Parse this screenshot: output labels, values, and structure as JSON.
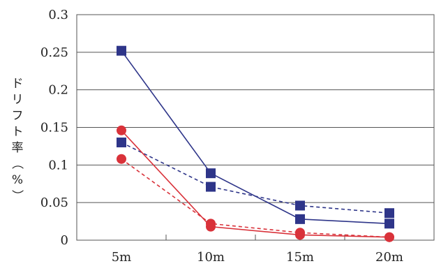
{
  "chart_data": {
    "type": "line",
    "title": "",
    "xlabel": "",
    "ylabel": "ドリフト率（%）",
    "categories": [
      "5m",
      "10m",
      "15m",
      "20m"
    ],
    "ylim": [
      0,
      0.3
    ],
    "yticks": [
      "0",
      "0.05",
      "0.1",
      "0.15",
      "0.2",
      "0.25",
      "0.3"
    ],
    "grid": true,
    "series": [
      {
        "color": "#2e3589",
        "marker": "square",
        "dash": "solid",
        "values": [
          0.252,
          0.089,
          0.028,
          0.022
        ]
      },
      {
        "color": "#2e3589",
        "marker": "square",
        "dash": "dashed",
        "values": [
          0.13,
          0.071,
          0.046,
          0.036
        ]
      },
      {
        "color": "#d9323a",
        "marker": "circle",
        "dash": "solid",
        "values": [
          0.146,
          0.018,
          0.007,
          0.004
        ]
      },
      {
        "color": "#d9323a",
        "marker": "circle",
        "dash": "dashed",
        "values": [
          0.108,
          0.022,
          0.01,
          0.004
        ]
      }
    ]
  }
}
